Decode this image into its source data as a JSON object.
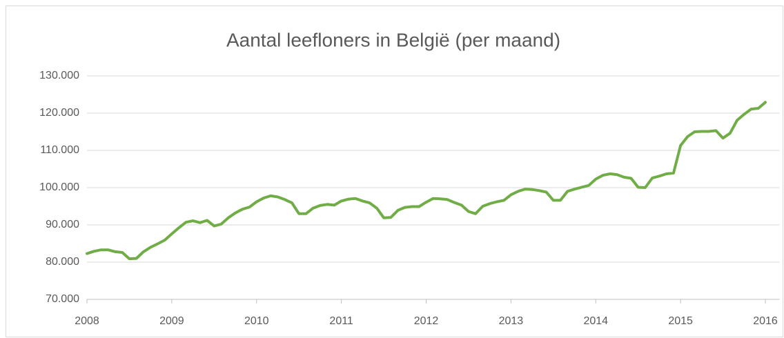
{
  "chart_data": {
    "type": "line",
    "title": "Aantal leefloners in België (per maand)",
    "x": [
      2008.0,
      2008.083,
      2008.167,
      2008.25,
      2008.333,
      2008.417,
      2008.5,
      2008.583,
      2008.667,
      2008.75,
      2008.833,
      2008.917,
      2009.0,
      2009.083,
      2009.167,
      2009.25,
      2009.333,
      2009.417,
      2009.5,
      2009.583,
      2009.667,
      2009.75,
      2009.833,
      2009.917,
      2010.0,
      2010.083,
      2010.167,
      2010.25,
      2010.333,
      2010.417,
      2010.5,
      2010.583,
      2010.667,
      2010.75,
      2010.833,
      2010.917,
      2011.0,
      2011.083,
      2011.167,
      2011.25,
      2011.333,
      2011.417,
      2011.5,
      2011.583,
      2011.667,
      2011.75,
      2011.833,
      2011.917,
      2012.0,
      2012.083,
      2012.167,
      2012.25,
      2012.333,
      2012.417,
      2012.5,
      2012.583,
      2012.667,
      2012.75,
      2012.833,
      2012.917,
      2013.0,
      2013.083,
      2013.167,
      2013.25,
      2013.333,
      2013.417,
      2013.5,
      2013.583,
      2013.667,
      2013.75,
      2013.833,
      2013.917,
      2014.0,
      2014.083,
      2014.167,
      2014.25,
      2014.333,
      2014.417,
      2014.5,
      2014.583,
      2014.667,
      2014.75,
      2014.833,
      2014.917,
      2015.0,
      2015.083,
      2015.167,
      2015.25,
      2015.333,
      2015.417,
      2015.5,
      2015.583,
      2015.667,
      2015.75,
      2015.833,
      2015.917,
      2016.0
    ],
    "series": [
      {
        "name": "Aantal leefloners",
        "color": "#70ad47",
        "values": [
          82300,
          82900,
          83300,
          83300,
          82800,
          82600,
          80900,
          81000,
          82800,
          84000,
          84900,
          85900,
          87600,
          89200,
          90700,
          91100,
          90600,
          91200,
          89700,
          90200,
          91900,
          93200,
          94200,
          94800,
          96200,
          97200,
          97800,
          97500,
          96800,
          95900,
          93000,
          93000,
          94500,
          95200,
          95500,
          95300,
          96400,
          96900,
          97100,
          96400,
          95900,
          94500,
          91900,
          92000,
          93900,
          94700,
          94900,
          94900,
          96100,
          97100,
          97000,
          96800,
          96000,
          95300,
          93600,
          93000,
          95000,
          95700,
          96200,
          96600,
          98100,
          99000,
          99600,
          99500,
          99200,
          98800,
          96600,
          96600,
          99000,
          99600,
          100100,
          100600,
          102300,
          103300,
          103700,
          103500,
          102800,
          102500,
          100100,
          100000,
          102600,
          103100,
          103700,
          103900,
          111300,
          113700,
          115000,
          115100,
          115100,
          115300,
          113300,
          114600,
          118100,
          119700,
          121100,
          121300,
          122900
        ]
      }
    ],
    "xlim": [
      2008,
      2016.2
    ],
    "xticks": [
      2008,
      2009,
      2010,
      2011,
      2012,
      2013,
      2014,
      2015,
      2016
    ],
    "ylim": [
      70000,
      130000
    ],
    "yticks": [
      {
        "value": 70000,
        "label": "70.000"
      },
      {
        "value": 80000,
        "label": "80.000"
      },
      {
        "value": 90000,
        "label": "90.000"
      },
      {
        "value": 100000,
        "label": "100.000"
      },
      {
        "value": 110000,
        "label": "110.000"
      },
      {
        "value": 120000,
        "label": "120.000"
      },
      {
        "value": 130000,
        "label": "130.000"
      }
    ],
    "grid": true
  }
}
